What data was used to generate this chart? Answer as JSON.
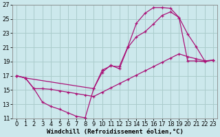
{
  "xlabel": "Windchill (Refroidissement éolien,°C)",
  "background_color": "#cce8ec",
  "grid_color": "#aacccc",
  "line_color": "#aa1177",
  "xlim": [
    -0.5,
    23.5
  ],
  "ylim": [
    11,
    27
  ],
  "xticks": [
    0,
    1,
    2,
    3,
    4,
    5,
    6,
    7,
    8,
    9,
    10,
    11,
    12,
    13,
    14,
    15,
    16,
    17,
    18,
    19,
    20,
    21,
    22,
    23
  ],
  "yticks": [
    11,
    13,
    15,
    17,
    19,
    21,
    23,
    25,
    27
  ],
  "series1_x": [
    0,
    1,
    2,
    3,
    4,
    5,
    6,
    7,
    8,
    9,
    10,
    11,
    12,
    13,
    14,
    15,
    16,
    17,
    18,
    19,
    20,
    21,
    22,
    23
  ],
  "series1_y": [
    17.0,
    16.7,
    15.2,
    13.3,
    12.7,
    12.3,
    11.8,
    11.3,
    11.1,
    15.2,
    17.8,
    18.4,
    18.3,
    21.1,
    24.4,
    25.8,
    26.6,
    26.6,
    26.5,
    25.2,
    19.1,
    19.1,
    19.0,
    19.2
  ],
  "series2_x": [
    0,
    1,
    2,
    3,
    4,
    5,
    6,
    7,
    8,
    9,
    10,
    11,
    12,
    13,
    14,
    15,
    16,
    17,
    18,
    19,
    20,
    21,
    22,
    23
  ],
  "series2_y": [
    17.0,
    16.7,
    15.2,
    15.2,
    15.1,
    14.9,
    14.7,
    14.5,
    14.3,
    14.1,
    14.7,
    15.3,
    15.9,
    16.5,
    17.1,
    17.7,
    18.3,
    18.9,
    19.5,
    20.1,
    19.7,
    19.4,
    19.1,
    19.2
  ],
  "series3_x": [
    0,
    1,
    9,
    10,
    11,
    12,
    13,
    14,
    15,
    16,
    17,
    18,
    19,
    20,
    21,
    22,
    23
  ],
  "series3_y": [
    17.0,
    16.7,
    15.2,
    17.5,
    18.5,
    18.0,
    21.0,
    22.5,
    23.2,
    24.3,
    25.5,
    26.0,
    25.2,
    22.9,
    21.1,
    19.1,
    19.2
  ],
  "xlabel_fontsize": 6.5,
  "tick_fontsize": 6.0
}
